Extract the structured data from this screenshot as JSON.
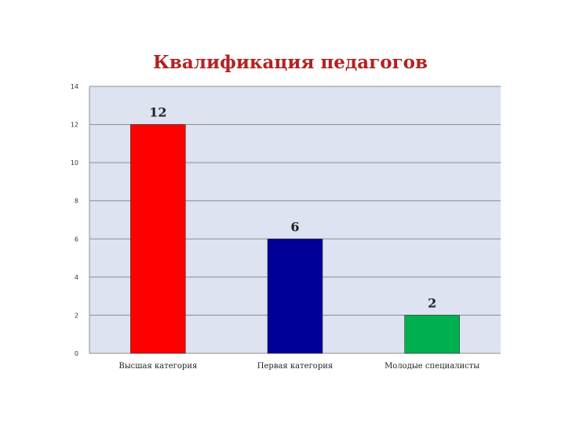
{
  "chart_data": {
    "type": "bar",
    "title": "Квалификация педагогов",
    "categories": [
      "Высшая категория",
      "Первая категория",
      "Молодые специалисты"
    ],
    "values": [
      12,
      6,
      2
    ],
    "data_labels": [
      "12",
      "6",
      "2"
    ],
    "bar_colors": [
      "#ff0000",
      "#000099",
      "#00b050"
    ],
    "ylim": [
      0,
      14
    ],
    "yticks": [
      0,
      2,
      4,
      6,
      8,
      10,
      12,
      14
    ],
    "grid": true,
    "plot_background": "#dde3f0",
    "xlabel": "",
    "ylabel": ""
  }
}
